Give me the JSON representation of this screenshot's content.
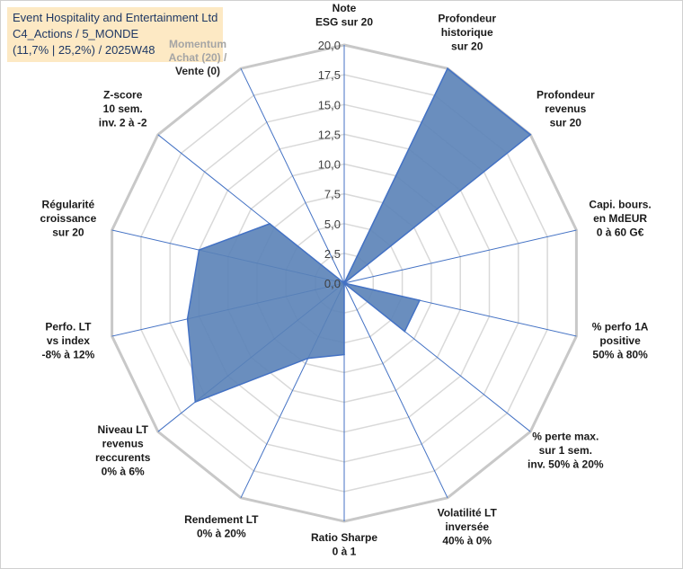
{
  "title_box": {
    "line1": "Event Hospitality and Entertainment Ltd",
    "line2": "C4_Actions / 5_MONDE",
    "line3": "(11,7% | 25,2%) / 2025W48"
  },
  "chart_data": {
    "type": "radar",
    "title": "Event Hospitality and Entertainment Ltd",
    "rmax": 20,
    "ticks": [
      "0,0",
      "2,5",
      "5,0",
      "7,5",
      "10,0",
      "12,5",
      "15,0",
      "17,5",
      "20,0"
    ],
    "axes": [
      {
        "label": [
          "Note",
          "ESG sur 20"
        ],
        "value": 0
      },
      {
        "label": [
          "Profondeur",
          "historique",
          "sur 20"
        ],
        "value": 20
      },
      {
        "label": [
          "Profondeur",
          "revenus",
          "sur 20"
        ],
        "value": 20
      },
      {
        "label": [
          "Capi. bours.",
          "en MdEUR",
          "0 à 60 G€"
        ],
        "value": 0
      },
      {
        "label": [
          "% perfo 1A",
          "positive",
          "50% à 80%"
        ],
        "value": 6.5
      },
      {
        "label": [
          "% perte max.",
          "sur 1 sem.",
          "inv. 50% à 20%"
        ],
        "value": 6.5
      },
      {
        "label": [
          "Volatilité LT",
          "inversée",
          "40% à 0%"
        ],
        "value": 0
      },
      {
        "label": [
          "Ratio Sharpe",
          "0 à 1"
        ],
        "value": 6
      },
      {
        "label": [
          "Rendement LT",
          "0% à 20%"
        ],
        "value": 7
      },
      {
        "label": [
          "Niveau LT",
          "revenus",
          "reccurents",
          "0% à 6%"
        ],
        "value": 16
      },
      {
        "label": [
          "Perfo. LT",
          "vs index",
          "-8% à 12%"
        ],
        "value": 13.5
      },
      {
        "label": [
          "Régularité",
          "croissance",
          "sur 20"
        ],
        "value": 12.5
      },
      {
        "label": [
          "Z-score",
          "10 sem.",
          "inv. 2 à -2"
        ],
        "value": 8
      },
      {
        "label": [
          "Momentum",
          "Achat (20) /",
          "Vente (0)"
        ],
        "value": 0
      }
    ],
    "series_name": "Event Hospitality and Entertainment Ltd",
    "fill_color": "#5a82b7",
    "stroke_color": "#4472c4",
    "grid_color": "#d9d9d9"
  }
}
